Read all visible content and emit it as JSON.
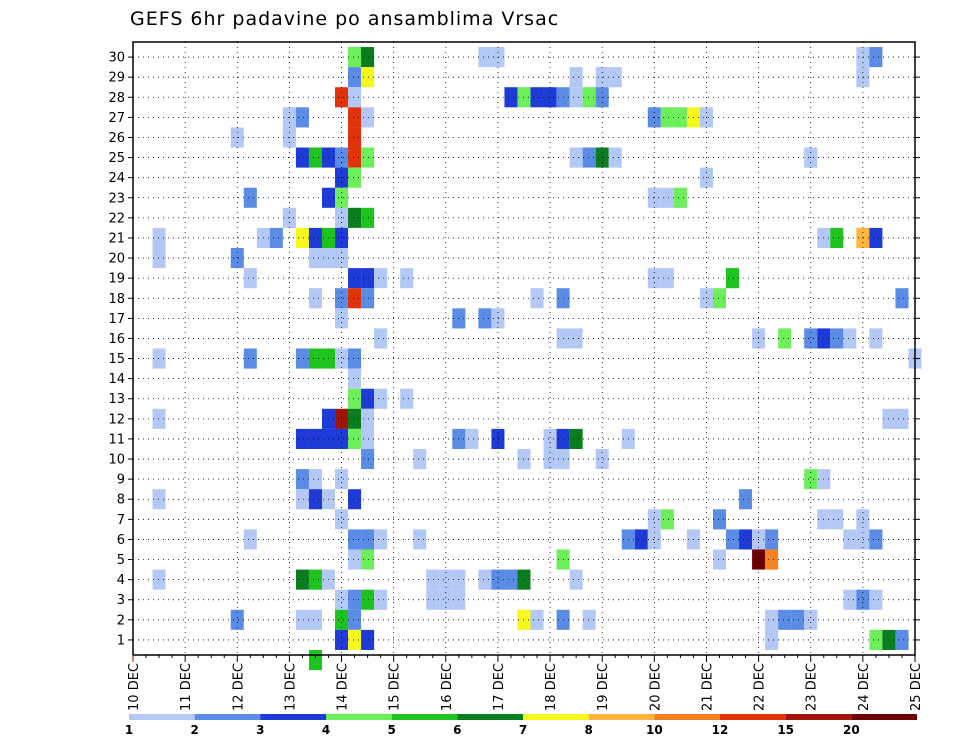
{
  "chart_data": {
    "type": "heatmap",
    "title": "GEFS 6hr padavine po ansamblima Vrsac",
    "xlabel": "",
    "ylabel": "",
    "x_tick_labels": [
      "10 DEC",
      "11 DEC",
      "12 DEC",
      "13 DEC",
      "14 DEC",
      "15 DEC",
      "16 DEC",
      "17 DEC",
      "18 DEC",
      "19 DEC",
      "20 DEC",
      "21 DEC",
      "22 DEC",
      "23 DEC",
      "24 DEC",
      "25 DEC"
    ],
    "y_tick_labels": [
      "1",
      "2",
      "3",
      "4",
      "5",
      "6",
      "7",
      "8",
      "9",
      "10",
      "11",
      "12",
      "13",
      "14",
      "15",
      "16",
      "17",
      "18",
      "19",
      "20",
      "21",
      "22",
      "23",
      "24",
      "25",
      "26",
      "27",
      "28",
      "29",
      "30"
    ],
    "x_range": [
      0,
      60
    ],
    "y_range": [
      0.5,
      30.5
    ],
    "x_unit": "6-hour steps from 10 DEC",
    "grid": true,
    "colorbar": {
      "labels": [
        "1",
        "2",
        "3",
        "4",
        "5",
        "6",
        "7",
        "8",
        "10",
        "12",
        "15",
        "20"
      ],
      "colors": [
        "#b4c8f5",
        "#5a8ce6",
        "#1e3ad7",
        "#6cef5a",
        "#1ec31e",
        "#0a7d1e",
        "#f7f71e",
        "#ffb43c",
        "#f5821e",
        "#e1320a",
        "#a0140a",
        "#6e0000"
      ]
    },
    "cells": [
      [
        17,
        30,
        3
      ],
      [
        18,
        30,
        5
      ],
      [
        27,
        30,
        0
      ],
      [
        28,
        30,
        0
      ],
      [
        56,
        30,
        0
      ],
      [
        57,
        30,
        1
      ],
      [
        17,
        29,
        1
      ],
      [
        18,
        29,
        6
      ],
      [
        34,
        29,
        0
      ],
      [
        36,
        29,
        0
      ],
      [
        37,
        29,
        0
      ],
      [
        56,
        29,
        0
      ],
      [
        16,
        28,
        9
      ],
      [
        17,
        28,
        0
      ],
      [
        29,
        28,
        2
      ],
      [
        30,
        28,
        3
      ],
      [
        31,
        28,
        2
      ],
      [
        32,
        28,
        2
      ],
      [
        33,
        28,
        1
      ],
      [
        34,
        28,
        0
      ],
      [
        35,
        28,
        3
      ],
      [
        36,
        28,
        1
      ],
      [
        12,
        27,
        0
      ],
      [
        13,
        27,
        1
      ],
      [
        17,
        27,
        9
      ],
      [
        18,
        27,
        0
      ],
      [
        40,
        27,
        1
      ],
      [
        41,
        27,
        3
      ],
      [
        42,
        27,
        3
      ],
      [
        43,
        27,
        6
      ],
      [
        44,
        27,
        0
      ],
      [
        8,
        26,
        0
      ],
      [
        12,
        26,
        0
      ],
      [
        17,
        26,
        9
      ],
      [
        13,
        25,
        2
      ],
      [
        14,
        25,
        4
      ],
      [
        15,
        25,
        2
      ],
      [
        16,
        25,
        1
      ],
      [
        17,
        25,
        9
      ],
      [
        18,
        25,
        3
      ],
      [
        34,
        25,
        0
      ],
      [
        35,
        25,
        1
      ],
      [
        36,
        25,
        5
      ],
      [
        37,
        25,
        0
      ],
      [
        52,
        25,
        0
      ],
      [
        16,
        24,
        2
      ],
      [
        17,
        24,
        3
      ],
      [
        44,
        24,
        0
      ],
      [
        9,
        23,
        1
      ],
      [
        15,
        23,
        2
      ],
      [
        16,
        23,
        3
      ],
      [
        40,
        23,
        0
      ],
      [
        41,
        23,
        0
      ],
      [
        42,
        23,
        3
      ],
      [
        12,
        22,
        0
      ],
      [
        16,
        22,
        0
      ],
      [
        17,
        22,
        5
      ],
      [
        18,
        22,
        4
      ],
      [
        2,
        21,
        0
      ],
      [
        10,
        21,
        0
      ],
      [
        11,
        21,
        1
      ],
      [
        13,
        21,
        6
      ],
      [
        14,
        21,
        2
      ],
      [
        15,
        21,
        4
      ],
      [
        16,
        21,
        2
      ],
      [
        53,
        21,
        0
      ],
      [
        54,
        21,
        4
      ],
      [
        56,
        21,
        7
      ],
      [
        57,
        21,
        2
      ],
      [
        2,
        20,
        0
      ],
      [
        8,
        20,
        1
      ],
      [
        14,
        20,
        0
      ],
      [
        15,
        20,
        0
      ],
      [
        16,
        20,
        0
      ],
      [
        9,
        19,
        0
      ],
      [
        17,
        19,
        2
      ],
      [
        18,
        19,
        2
      ],
      [
        19,
        19,
        0
      ],
      [
        21,
        19,
        0
      ],
      [
        40,
        19,
        0
      ],
      [
        41,
        19,
        0
      ],
      [
        46,
        19,
        4
      ],
      [
        14,
        18,
        0
      ],
      [
        16,
        18,
        1
      ],
      [
        17,
        18,
        9
      ],
      [
        18,
        18,
        1
      ],
      [
        31,
        18,
        0
      ],
      [
        33,
        18,
        1
      ],
      [
        44,
        18,
        0
      ],
      [
        45,
        18,
        3
      ],
      [
        59,
        18,
        1
      ],
      [
        16,
        17,
        0
      ],
      [
        25,
        17,
        1
      ],
      [
        27,
        17,
        1
      ],
      [
        28,
        17,
        0
      ],
      [
        19,
        16,
        0
      ],
      [
        33,
        16,
        0
      ],
      [
        34,
        16,
        0
      ],
      [
        48,
        16,
        0
      ],
      [
        50,
        16,
        3
      ],
      [
        52,
        16,
        1
      ],
      [
        53,
        16,
        2
      ],
      [
        54,
        16,
        1
      ],
      [
        55,
        16,
        0
      ],
      [
        57,
        16,
        0
      ],
      [
        2,
        15,
        0
      ],
      [
        9,
        15,
        1
      ],
      [
        13,
        15,
        1
      ],
      [
        14,
        15,
        4
      ],
      [
        15,
        15,
        4
      ],
      [
        16,
        15,
        0
      ],
      [
        17,
        15,
        1
      ],
      [
        60,
        15,
        0
      ],
      [
        17,
        14,
        0
      ],
      [
        17,
        13,
        3
      ],
      [
        18,
        13,
        2
      ],
      [
        19,
        13,
        0
      ],
      [
        21,
        13,
        0
      ],
      [
        2,
        12,
        0
      ],
      [
        15,
        12,
        2
      ],
      [
        16,
        12,
        10
      ],
      [
        17,
        12,
        5
      ],
      [
        18,
        12,
        0
      ],
      [
        58,
        12,
        0
      ],
      [
        59,
        12,
        0
      ],
      [
        13,
        11,
        2
      ],
      [
        14,
        11,
        2
      ],
      [
        15,
        11,
        2
      ],
      [
        16,
        11,
        2
      ],
      [
        17,
        11,
        3
      ],
      [
        18,
        11,
        0
      ],
      [
        25,
        11,
        1
      ],
      [
        26,
        11,
        0
      ],
      [
        28,
        11,
        2
      ],
      [
        32,
        11,
        0
      ],
      [
        33,
        11,
        2
      ],
      [
        34,
        11,
        5
      ],
      [
        38,
        11,
        0
      ],
      [
        18,
        10,
        1
      ],
      [
        22,
        10,
        0
      ],
      [
        30,
        10,
        0
      ],
      [
        32,
        10,
        0
      ],
      [
        33,
        10,
        0
      ],
      [
        36,
        10,
        0
      ],
      [
        13,
        9,
        1
      ],
      [
        14,
        9,
        0
      ],
      [
        16,
        9,
        0
      ],
      [
        52,
        9,
        3
      ],
      [
        53,
        9,
        0
      ],
      [
        2,
        8,
        0
      ],
      [
        13,
        8,
        0
      ],
      [
        14,
        8,
        2
      ],
      [
        15,
        8,
        0
      ],
      [
        17,
        8,
        2
      ],
      [
        47,
        8,
        1
      ],
      [
        16,
        7,
        0
      ],
      [
        40,
        7,
        0
      ],
      [
        41,
        7,
        3
      ],
      [
        45,
        7,
        1
      ],
      [
        53,
        7,
        0
      ],
      [
        54,
        7,
        0
      ],
      [
        56,
        7,
        0
      ],
      [
        9,
        6,
        0
      ],
      [
        17,
        6,
        1
      ],
      [
        18,
        6,
        1
      ],
      [
        19,
        6,
        0
      ],
      [
        22,
        6,
        0
      ],
      [
        38,
        6,
        1
      ],
      [
        39,
        6,
        2
      ],
      [
        40,
        6,
        0
      ],
      [
        43,
        6,
        0
      ],
      [
        46,
        6,
        1
      ],
      [
        47,
        6,
        2
      ],
      [
        48,
        6,
        0
      ],
      [
        49,
        6,
        1
      ],
      [
        55,
        6,
        0
      ],
      [
        56,
        6,
        0
      ],
      [
        57,
        6,
        1
      ],
      [
        17,
        5,
        0
      ],
      [
        18,
        5,
        3
      ],
      [
        33,
        5,
        3
      ],
      [
        45,
        5,
        0
      ],
      [
        48,
        5,
        11
      ],
      [
        49,
        5,
        8
      ],
      [
        2,
        4,
        0
      ],
      [
        13,
        4,
        5
      ],
      [
        14,
        4,
        4
      ],
      [
        15,
        4,
        0
      ],
      [
        23,
        4,
        0
      ],
      [
        24,
        4,
        0
      ],
      [
        25,
        4,
        0
      ],
      [
        27,
        4,
        0
      ],
      [
        28,
        4,
        1
      ],
      [
        29,
        4,
        1
      ],
      [
        30,
        4,
        5
      ],
      [
        34,
        4,
        0
      ],
      [
        16,
        3,
        0
      ],
      [
        17,
        3,
        1
      ],
      [
        18,
        3,
        4
      ],
      [
        19,
        3,
        0
      ],
      [
        23,
        3,
        0
      ],
      [
        24,
        3,
        0
      ],
      [
        25,
        3,
        0
      ],
      [
        55,
        3,
        0
      ],
      [
        56,
        3,
        1
      ],
      [
        57,
        3,
        0
      ],
      [
        8,
        2,
        1
      ],
      [
        13,
        2,
        0
      ],
      [
        14,
        2,
        0
      ],
      [
        16,
        2,
        4
      ],
      [
        17,
        2,
        1
      ],
      [
        30,
        2,
        6
      ],
      [
        31,
        2,
        0
      ],
      [
        33,
        2,
        1
      ],
      [
        35,
        2,
        0
      ],
      [
        49,
        2,
        0
      ],
      [
        50,
        2,
        1
      ],
      [
        51,
        2,
        1
      ],
      [
        52,
        2,
        0
      ],
      [
        16,
        1,
        2
      ],
      [
        17,
        1,
        6
      ],
      [
        18,
        1,
        2
      ],
      [
        49,
        1,
        0
      ],
      [
        57,
        1,
        3
      ],
      [
        58,
        1,
        5
      ],
      [
        59,
        1,
        1
      ],
      [
        14,
        0,
        4
      ]
    ]
  }
}
